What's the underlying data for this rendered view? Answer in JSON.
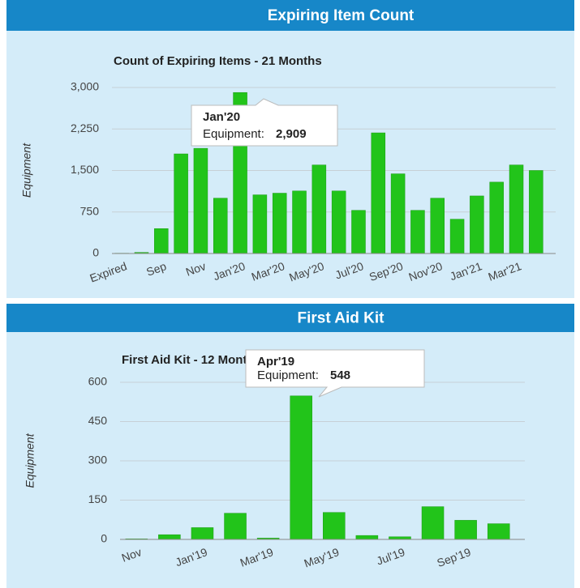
{
  "chart_data": [
    {
      "type": "bar",
      "header": "Expiring Item Count",
      "title": "Count of Expiring Items - 21 Months",
      "y_label": "Equipment",
      "categories": [
        "Expired",
        null,
        "Sep",
        null,
        "Nov",
        null,
        "Jan'20",
        null,
        "Mar'20",
        null,
        "May'20",
        null,
        "Jul'20",
        null,
        "Sep'20",
        null,
        "Nov'20",
        null,
        "Jan'21",
        null,
        "Mar'21",
        null
      ],
      "series": [
        {
          "name": "Equipment",
          "color": "#22c41a",
          "values": [
            5,
            20,
            450,
            1800,
            1900,
            1000,
            2909,
            1060,
            1090,
            1130,
            1600,
            1130,
            780,
            2180,
            1440,
            780,
            1000,
            620,
            1040,
            1290,
            1600,
            1500
          ]
        }
      ],
      "ylim": [
        0,
        3000
      ],
      "yticks": [
        0,
        750,
        {
          "value": 1500,
          "label": "1,500"
        },
        {
          "value": 2250,
          "label": "2,250"
        },
        {
          "value": 3000,
          "label": "3,000"
        }
      ],
      "grid": true,
      "tooltip": {
        "title": "Jan'20",
        "label": "Equipment:",
        "value_label": "2,909"
      }
    },
    {
      "type": "bar",
      "header": "First Aid Kit",
      "title": "First Aid Kit - 12 Months",
      "y_label": "Equipment",
      "categories": [
        "Nov",
        null,
        "Jan'19",
        null,
        "Mar'19",
        null,
        "May'19",
        null,
        "Jul'19",
        null,
        "Sep'19",
        null
      ],
      "series": [
        {
          "name": "Equipment",
          "color": "#22c41a",
          "values": [
            2,
            18,
            45,
            100,
            5,
            548,
            103,
            15,
            10,
            125,
            73,
            60
          ]
        }
      ],
      "ylim": [
        0,
        600
      ],
      "yticks": [
        0,
        150,
        300,
        450,
        600
      ],
      "grid": true,
      "tooltip": {
        "title": "Apr'19",
        "label": "Equipment:",
        "value_label": "548"
      }
    }
  ]
}
